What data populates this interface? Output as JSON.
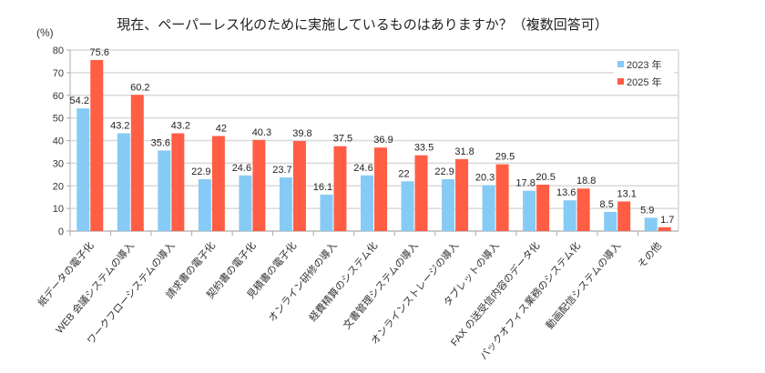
{
  "chart_data": {
    "type": "bar",
    "title": "現在、ペーパーレス化のために実施しているものはありますか？（複数回答可）",
    "ylabel": "(%)",
    "xlabel": "",
    "ylim": [
      0,
      80
    ],
    "yticks": [
      0,
      10,
      20,
      30,
      40,
      50,
      60,
      70,
      80
    ],
    "grid": true,
    "legend_position": "top-right",
    "categories": [
      "紙データの電子化",
      "WEB 会議システムの導入",
      "ワークフローシステムの導入",
      "請求書の電子化",
      "契約書の電子化",
      "見積書の電子化",
      "オンライン研修の導入",
      "経費精算のシステム化",
      "文書管理システムの導入",
      "オンラインストレージの導入",
      "タブレットの導入",
      "FAX の送受信内容のデータ化",
      "バックオフィス業務のシステム化",
      "動画配信システムの導入",
      "その他"
    ],
    "series": [
      {
        "name": "2023 年",
        "color": "#86CBF5",
        "values": [
          54.2,
          43.2,
          35.6,
          22.9,
          24.6,
          23.7,
          16.1,
          24.6,
          22,
          22.9,
          20.3,
          17.8,
          13.6,
          8.5,
          5.9
        ]
      },
      {
        "name": "2025 年",
        "color": "#FF5E45",
        "values": [
          75.6,
          60.2,
          43.2,
          42,
          40.3,
          39.8,
          37.5,
          36.9,
          33.5,
          31.8,
          29.5,
          20.5,
          18.8,
          13.1,
          1.7
        ]
      }
    ]
  }
}
